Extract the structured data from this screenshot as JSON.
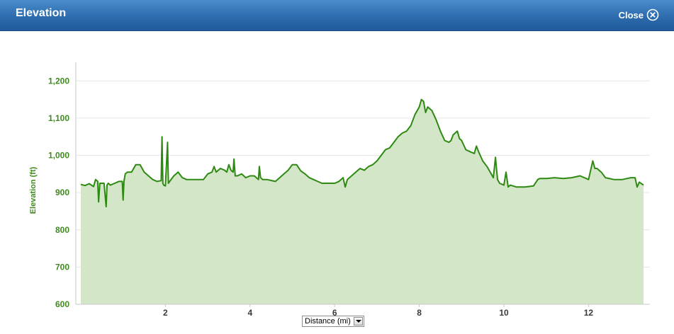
{
  "window": {
    "title": "Elevation",
    "close_label": "Close"
  },
  "x_axis_selector": {
    "selected": "Distance (mi)"
  },
  "colors": {
    "header": "#2d6cae",
    "line": "#2e8a12",
    "fill": "#d3e6c8",
    "tick_y": "#3f8a1f"
  },
  "chart_data": {
    "type": "area",
    "title": "",
    "xlabel": "Distance (mi)",
    "ylabel": "Elevation (ft)",
    "xlim": [
      0,
      13.3
    ],
    "ylim": [
      600,
      1250
    ],
    "yticks": [
      600,
      700,
      800,
      900,
      1000,
      1100,
      1200
    ],
    "ytick_labels": [
      "600",
      "700",
      "800",
      "900",
      "1,000",
      "1,100",
      "1,200"
    ],
    "xticks": [
      2,
      4,
      6,
      8,
      10,
      12
    ],
    "xtick_labels": [
      "2",
      "4",
      "6",
      "8",
      "10",
      "12"
    ],
    "grid": "horizontal",
    "series": [
      {
        "x": [
          0,
          0.1,
          0.2,
          0.3,
          0.35,
          0.4,
          0.42,
          0.45,
          0.5,
          0.55,
          0.6,
          0.62,
          0.65,
          0.7,
          0.8,
          0.9,
          0.98,
          1.0,
          1.02,
          1.05,
          1.1,
          1.2,
          1.3,
          1.4,
          1.5,
          1.6,
          1.7,
          1.8,
          1.9,
          1.92,
          1.94,
          1.96,
          2.0,
          2.05,
          2.07,
          2.1,
          2.2,
          2.3,
          2.4,
          2.5,
          2.6,
          2.8,
          2.9,
          3.0,
          3.1,
          3.15,
          3.2,
          3.3,
          3.4,
          3.45,
          3.5,
          3.55,
          3.6,
          3.62,
          3.65,
          3.7,
          3.8,
          3.9,
          4.0,
          4.1,
          4.2,
          4.22,
          4.25,
          4.3,
          4.4,
          4.6,
          4.7,
          4.8,
          4.9,
          5.0,
          5.1,
          5.2,
          5.3,
          5.4,
          5.5,
          5.6,
          5.7,
          5.8,
          5.9,
          6.0,
          6.1,
          6.2,
          6.25,
          6.3,
          6.4,
          6.5,
          6.6,
          6.7,
          6.8,
          6.9,
          7.0,
          7.1,
          7.2,
          7.3,
          7.4,
          7.5,
          7.6,
          7.7,
          7.8,
          7.9,
          8.0,
          8.05,
          8.1,
          8.15,
          8.2,
          8.3,
          8.4,
          8.5,
          8.6,
          8.7,
          8.75,
          8.8,
          8.9,
          8.95,
          9.0,
          9.1,
          9.2,
          9.3,
          9.35,
          9.4,
          9.5,
          9.6,
          9.7,
          9.75,
          9.8,
          9.85,
          9.9,
          10.0,
          10.05,
          10.1,
          10.15,
          10.3,
          10.5,
          10.7,
          10.8,
          10.85,
          11.0,
          11.2,
          11.4,
          11.6,
          11.8,
          12.0,
          12.1,
          12.15,
          12.2,
          12.3,
          12.4,
          12.6,
          12.8,
          13.0,
          13.1,
          13.15,
          13.2,
          13.3
        ],
        "values": [
          922,
          919,
          924,
          916,
          935,
          930,
          875,
          925,
          925,
          925,
          862,
          920,
          925,
          920,
          925,
          930,
          930,
          880,
          930,
          950,
          955,
          955,
          975,
          975,
          955,
          945,
          935,
          930,
          932,
          1050,
          925,
          920,
          918,
          1035,
          925,
          930,
          945,
          955,
          940,
          935,
          935,
          935,
          935,
          950,
          955,
          970,
          955,
          965,
          960,
          955,
          975,
          960,
          955,
          990,
          945,
          945,
          950,
          940,
          945,
          945,
          935,
          970,
          940,
          935,
          935,
          930,
          940,
          950,
          960,
          975,
          975,
          958,
          950,
          940,
          935,
          930,
          925,
          925,
          925,
          925,
          930,
          940,
          915,
          935,
          945,
          955,
          965,
          960,
          970,
          975,
          985,
          1000,
          1015,
          1020,
          1035,
          1050,
          1060,
          1065,
          1080,
          1110,
          1130,
          1150,
          1145,
          1115,
          1130,
          1120,
          1095,
          1065,
          1040,
          1035,
          1040,
          1055,
          1065,
          1045,
          1040,
          1015,
          1010,
          1005,
          1025,
          1010,
          985,
          970,
          950,
          940,
          995,
          935,
          925,
          920,
          955,
          915,
          920,
          915,
          915,
          918,
          935,
          938,
          938,
          940,
          938,
          940,
          945,
          935,
          985,
          965,
          965,
          955,
          940,
          935,
          935,
          940,
          940,
          915,
          928,
          920
        ]
      }
    ]
  }
}
